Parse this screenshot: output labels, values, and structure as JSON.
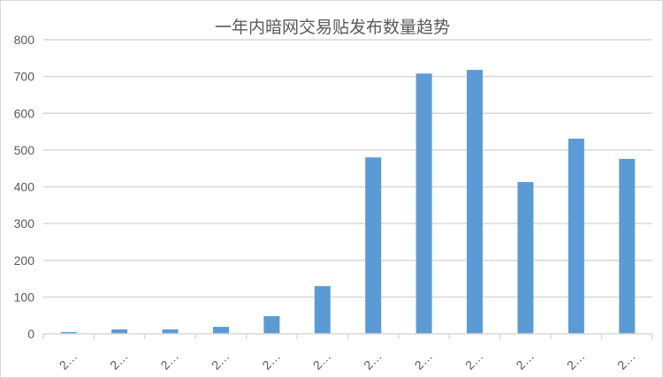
{
  "chart_data": {
    "type": "bar",
    "title": "一年内暗网交易贴发布数量趋势",
    "categories": [
      "2…",
      "2…",
      "2…",
      "2…",
      "2…",
      "2…",
      "2…",
      "2…",
      "2…",
      "2…",
      "2…",
      "2…"
    ],
    "values": [
      5,
      12,
      12,
      19,
      48,
      130,
      480,
      708,
      718,
      413,
      531,
      476
    ],
    "xlabel": "",
    "ylabel": "",
    "ylim": [
      0,
      800
    ],
    "yticks": [
      0,
      100,
      200,
      300,
      400,
      500,
      600,
      700,
      800
    ],
    "grid": true,
    "legend": "none",
    "colors": {
      "bar": "#5b9bd5",
      "grid": "#d9d9d9",
      "text": "#595959"
    }
  }
}
